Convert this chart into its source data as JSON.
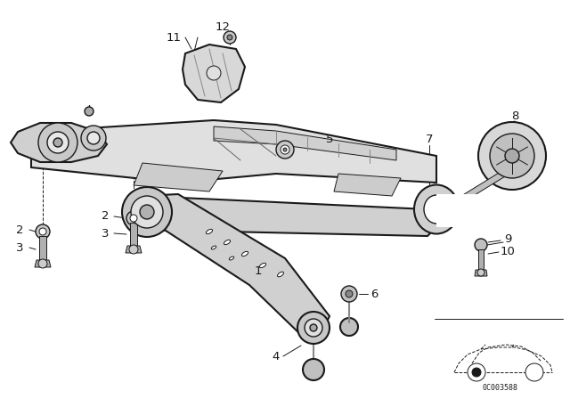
{
  "bg_color": "#ffffff",
  "line_color": "#1a1a1a",
  "figure_size": [
    6.4,
    4.48
  ],
  "dpi": 100,
  "diagram_code_text": "0C003588"
}
